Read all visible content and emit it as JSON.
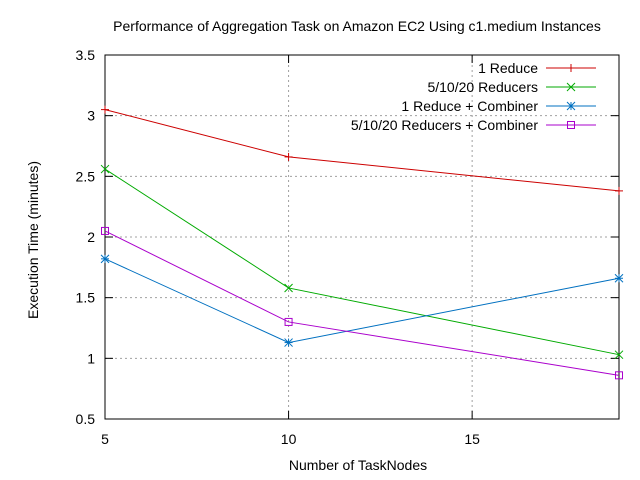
{
  "chart_data": {
    "type": "line",
    "title": "Performance of Aggregation Task on Amazon EC2 Using c1.medium Instances",
    "xlabel": "Number of TaskNodes",
    "ylabel": "Execution Time (minutes)",
    "xlim": [
      5,
      19
    ],
    "ylim": [
      0.5,
      3.5
    ],
    "x_ticks": [
      5,
      10,
      15
    ],
    "y_ticks": [
      0.5,
      1,
      1.5,
      2,
      2.5,
      3,
      3.5
    ],
    "x_tick_labels": [
      "5",
      "10",
      "15"
    ],
    "y_tick_labels": [
      "0.5",
      "1",
      "1.5",
      "2",
      "2.5",
      "3",
      "3.5"
    ],
    "grid": true,
    "legend_position": "top-right",
    "x": [
      5,
      10,
      19
    ],
    "series": [
      {
        "name": "1 Reduce",
        "values": [
          3.05,
          2.66,
          2.38
        ],
        "color": "#cc0000",
        "marker": "plus"
      },
      {
        "name": "5/10/20 Reducers",
        "values": [
          2.56,
          1.58,
          1.03
        ],
        "color": "#00aa00",
        "marker": "cross"
      },
      {
        "name": "1 Reduce + Combiner",
        "values": [
          1.82,
          1.13,
          1.66
        ],
        "color": "#0070c0",
        "marker": "star"
      },
      {
        "name": "5/10/20 Reducers + Combiner",
        "values": [
          2.05,
          1.3,
          0.86
        ],
        "color": "#aa00cc",
        "marker": "square"
      }
    ]
  }
}
